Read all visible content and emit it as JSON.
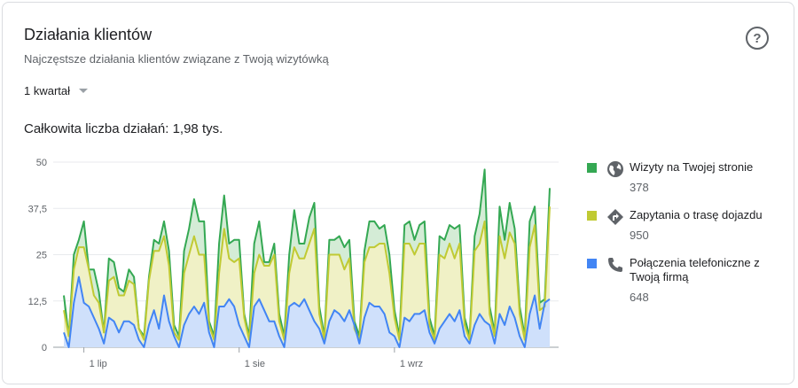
{
  "card": {
    "title": "Działania klientów",
    "subtitle": "Najczęstsze działania klientów związane z Twoją wizytówką",
    "period": "1 kwartał",
    "total": "Całkowita liczba działań: 1,98 tys.",
    "help_icon": "help-circle-icon"
  },
  "colors": {
    "website": "#34a853",
    "directions": "#c0ca33",
    "calls": "#4285f4",
    "website_fill": "#d4ecd6",
    "directions_fill": "#f0f1c6",
    "calls_fill": "#cfe0fb"
  },
  "legend": [
    {
      "label": "Wizyty na Twojej stronie",
      "value": "378",
      "icon": "globe-icon"
    },
    {
      "label": "Zapytania o trasę dojazdu",
      "value": "950",
      "icon": "directions-icon"
    },
    {
      "label": "Połączenia telefoniczne z Twoją firmą",
      "value": "648",
      "icon": "phone-icon"
    }
  ],
  "chart_data": {
    "type": "area",
    "stacked": false,
    "y_ticks": [
      "0",
      "12,5",
      "25",
      "37,5",
      "50"
    ],
    "ylim": [
      0,
      50
    ],
    "x_ticks": [
      {
        "label": "1 lip",
        "index": 4
      },
      {
        "label": "1 sie",
        "index": 35
      },
      {
        "label": "1 wrz",
        "index": 66
      }
    ],
    "grid": true,
    "legend_position": "right",
    "series": [
      {
        "name": "Wizyty na Twojej stronie",
        "values": [
          14,
          3,
          25,
          29,
          34,
          21,
          21,
          15,
          4,
          24,
          23,
          16,
          15,
          21,
          19,
          5,
          3,
          19,
          29,
          28,
          34,
          26,
          6,
          3,
          26,
          32,
          40,
          34,
          34,
          7,
          3,
          28,
          41,
          28,
          29,
          29,
          9,
          3,
          28,
          34,
          23,
          23,
          28,
          9,
          3,
          25,
          37,
          28,
          28,
          35,
          39,
          11,
          3,
          29,
          29,
          30,
          27,
          29,
          7,
          3,
          26,
          34,
          34,
          32,
          33,
          25,
          10,
          3,
          33,
          34,
          29,
          33,
          34,
          8,
          3,
          30,
          29,
          33,
          32,
          33,
          8,
          3,
          30,
          36,
          48,
          11,
          4,
          38,
          29,
          39,
          32,
          11,
          3,
          34,
          38,
          12,
          13,
          43
        ]
      },
      {
        "name": "Zapytania o trasę dojazdu",
        "values": [
          10,
          3,
          21,
          27,
          27,
          21,
          14,
          12,
          4,
          18,
          19,
          14,
          14,
          18,
          17,
          5,
          2,
          18,
          26,
          26,
          30,
          22,
          4,
          2,
          20,
          25,
          30,
          25,
          25,
          6,
          2,
          20,
          32,
          24,
          23,
          24,
          8,
          2,
          20,
          25,
          22,
          22,
          25,
          7,
          2,
          20,
          27,
          24,
          24,
          28,
          32,
          9,
          2,
          25,
          25,
          25,
          21,
          24,
          5,
          2,
          23,
          27,
          27,
          28,
          28,
          20,
          8,
          2,
          28,
          28,
          25,
          28,
          28,
          6,
          2,
          25,
          24,
          28,
          24,
          28,
          6,
          2,
          26,
          28,
          34,
          9,
          3,
          30,
          24,
          31,
          28,
          9,
          2,
          27,
          33,
          10,
          11,
          38
        ]
      },
      {
        "name": "Połączenia telefoniczne z Twoją firmą",
        "values": [
          4,
          0,
          12,
          19,
          12,
          11,
          8,
          5,
          1,
          8,
          7,
          4,
          7,
          7,
          6,
          2,
          0,
          6,
          10,
          5,
          14,
          7,
          3,
          0,
          6,
          9,
          11,
          9,
          12,
          4,
          0,
          11,
          11,
          13,
          11,
          6,
          3,
          0,
          11,
          13,
          10,
          7,
          7,
          3,
          0,
          11,
          12,
          11,
          13,
          10,
          7,
          5,
          1,
          7,
          10,
          9,
          7,
          10,
          6,
          1,
          8,
          12,
          11,
          11,
          9,
          4,
          3,
          0,
          8,
          7,
          9,
          9,
          10,
          4,
          1,
          5,
          7,
          9,
          7,
          10,
          3,
          1,
          6,
          9,
          7,
          6,
          1,
          9,
          6,
          11,
          8,
          3,
          0,
          9,
          14,
          5,
          12,
          13
        ]
      }
    ]
  }
}
